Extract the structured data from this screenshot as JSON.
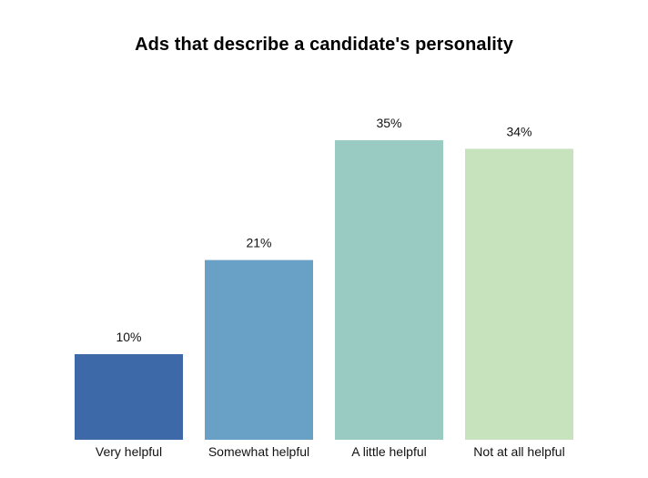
{
  "chart_data": {
    "type": "bar",
    "title": "Ads that describe a candidate's personality",
    "categories": [
      "Very helpful",
      "Somewhat helpful",
      "A little helpful",
      "Not at all helpful"
    ],
    "values": [
      10,
      21,
      35,
      34
    ],
    "value_labels": [
      "10%",
      "21%",
      "35%",
      "34%"
    ],
    "colors": [
      "#3d69a8",
      "#69a0c6",
      "#9acbc2",
      "#c7e3bd"
    ],
    "ylim": [
      0,
      35
    ],
    "grid": false,
    "xlabel": "",
    "ylabel": ""
  }
}
